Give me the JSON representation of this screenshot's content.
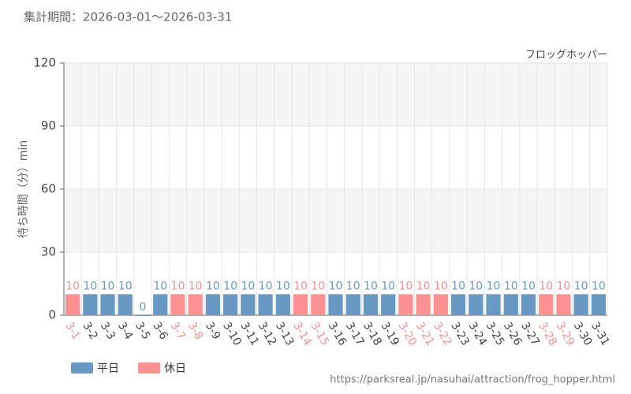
{
  "chart_data": {
    "type": "bar",
    "title": "集計期間：2026-03-01～2026-03-31",
    "subtitle": "フロッグホッパー",
    "y_label": "待ち時間（分）min",
    "source": "https://parksreal.jp/nasuhai/attraction/frog_hopper.html",
    "categories": [
      "3-1",
      "3-2",
      "3-3",
      "3-4",
      "3-5",
      "3-6",
      "3-7",
      "3-8",
      "3-9",
      "3-10",
      "3-11",
      "3-12",
      "3-13",
      "3-14",
      "3-15",
      "3-16",
      "3-17",
      "3-18",
      "3-19",
      "3-20",
      "3-21",
      "3-22",
      "3-23",
      "3-24",
      "3-25",
      "3-26",
      "3-27",
      "3-28",
      "3-29",
      "3-30",
      "3-31"
    ],
    "series": [
      {
        "name": "平日",
        "color": "#6899c4",
        "values": [
          null,
          10,
          10,
          10,
          0,
          10,
          null,
          null,
          10,
          10,
          10,
          10,
          10,
          null,
          null,
          10,
          10,
          10,
          10,
          null,
          null,
          null,
          10,
          10,
          10,
          10,
          10,
          null,
          null,
          10,
          10
        ]
      },
      {
        "name": "休日",
        "color": "#fc9191",
        "values": [
          10,
          null,
          null,
          null,
          null,
          null,
          10,
          10,
          null,
          null,
          null,
          null,
          null,
          10,
          10,
          null,
          null,
          null,
          null,
          10,
          10,
          10,
          null,
          null,
          null,
          null,
          null,
          10,
          10,
          null,
          null
        ]
      }
    ],
    "ylim": [
      0,
      120
    ],
    "yticks": [
      0,
      30,
      60,
      90,
      120
    ],
    "grid": true
  }
}
